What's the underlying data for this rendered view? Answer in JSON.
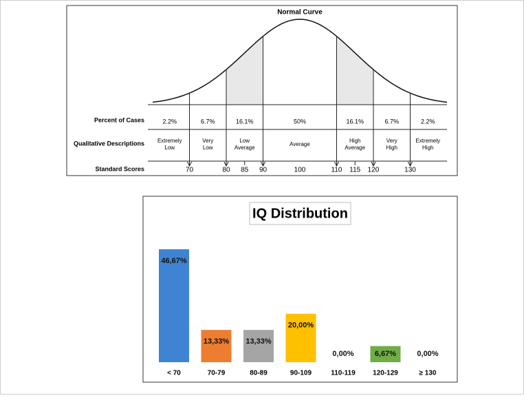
{
  "normal_curve": {
    "title": "Normal Curve",
    "row_labels": [
      "Percent of Cases",
      "Qualitative Descriptions",
      "Standard Scores"
    ],
    "percents": [
      "2.2%",
      "6.7%",
      "16.1%",
      "50%",
      "16.1%",
      "6.7%",
      "2.2%"
    ],
    "descriptions": [
      [
        "Extremely",
        "Low"
      ],
      [
        "Very",
        "Low"
      ],
      [
        "Low",
        "Average"
      ],
      [
        "Average"
      ],
      [
        "High",
        "Average"
      ],
      [
        "Very",
        "High"
      ],
      [
        "Extremely",
        "High"
      ]
    ],
    "boundaries": [
      70,
      80,
      90,
      110,
      120,
      130
    ],
    "scores": [
      70,
      80,
      85,
      90,
      100,
      110,
      115,
      120,
      130
    ]
  },
  "chart_data": {
    "type": "bar",
    "title": "IQ Distribution",
    "categories": [
      "< 70",
      "70-79",
      "80-89",
      "90-109",
      "110-119",
      "120-129",
      "≥ 130"
    ],
    "values": [
      46.67,
      13.33,
      13.33,
      20,
      0,
      6.67,
      0
    ],
    "value_labels": [
      "46,67%",
      "13,33%",
      "13,33%",
      "20,00%",
      "0,00%",
      "6,67%",
      "0,00%"
    ],
    "colors": [
      "#3f84d2",
      "#ed7d31",
      "#a5a5a5",
      "#ffc000",
      "#4472c4",
      "#70ad47",
      "#4472c4"
    ]
  }
}
